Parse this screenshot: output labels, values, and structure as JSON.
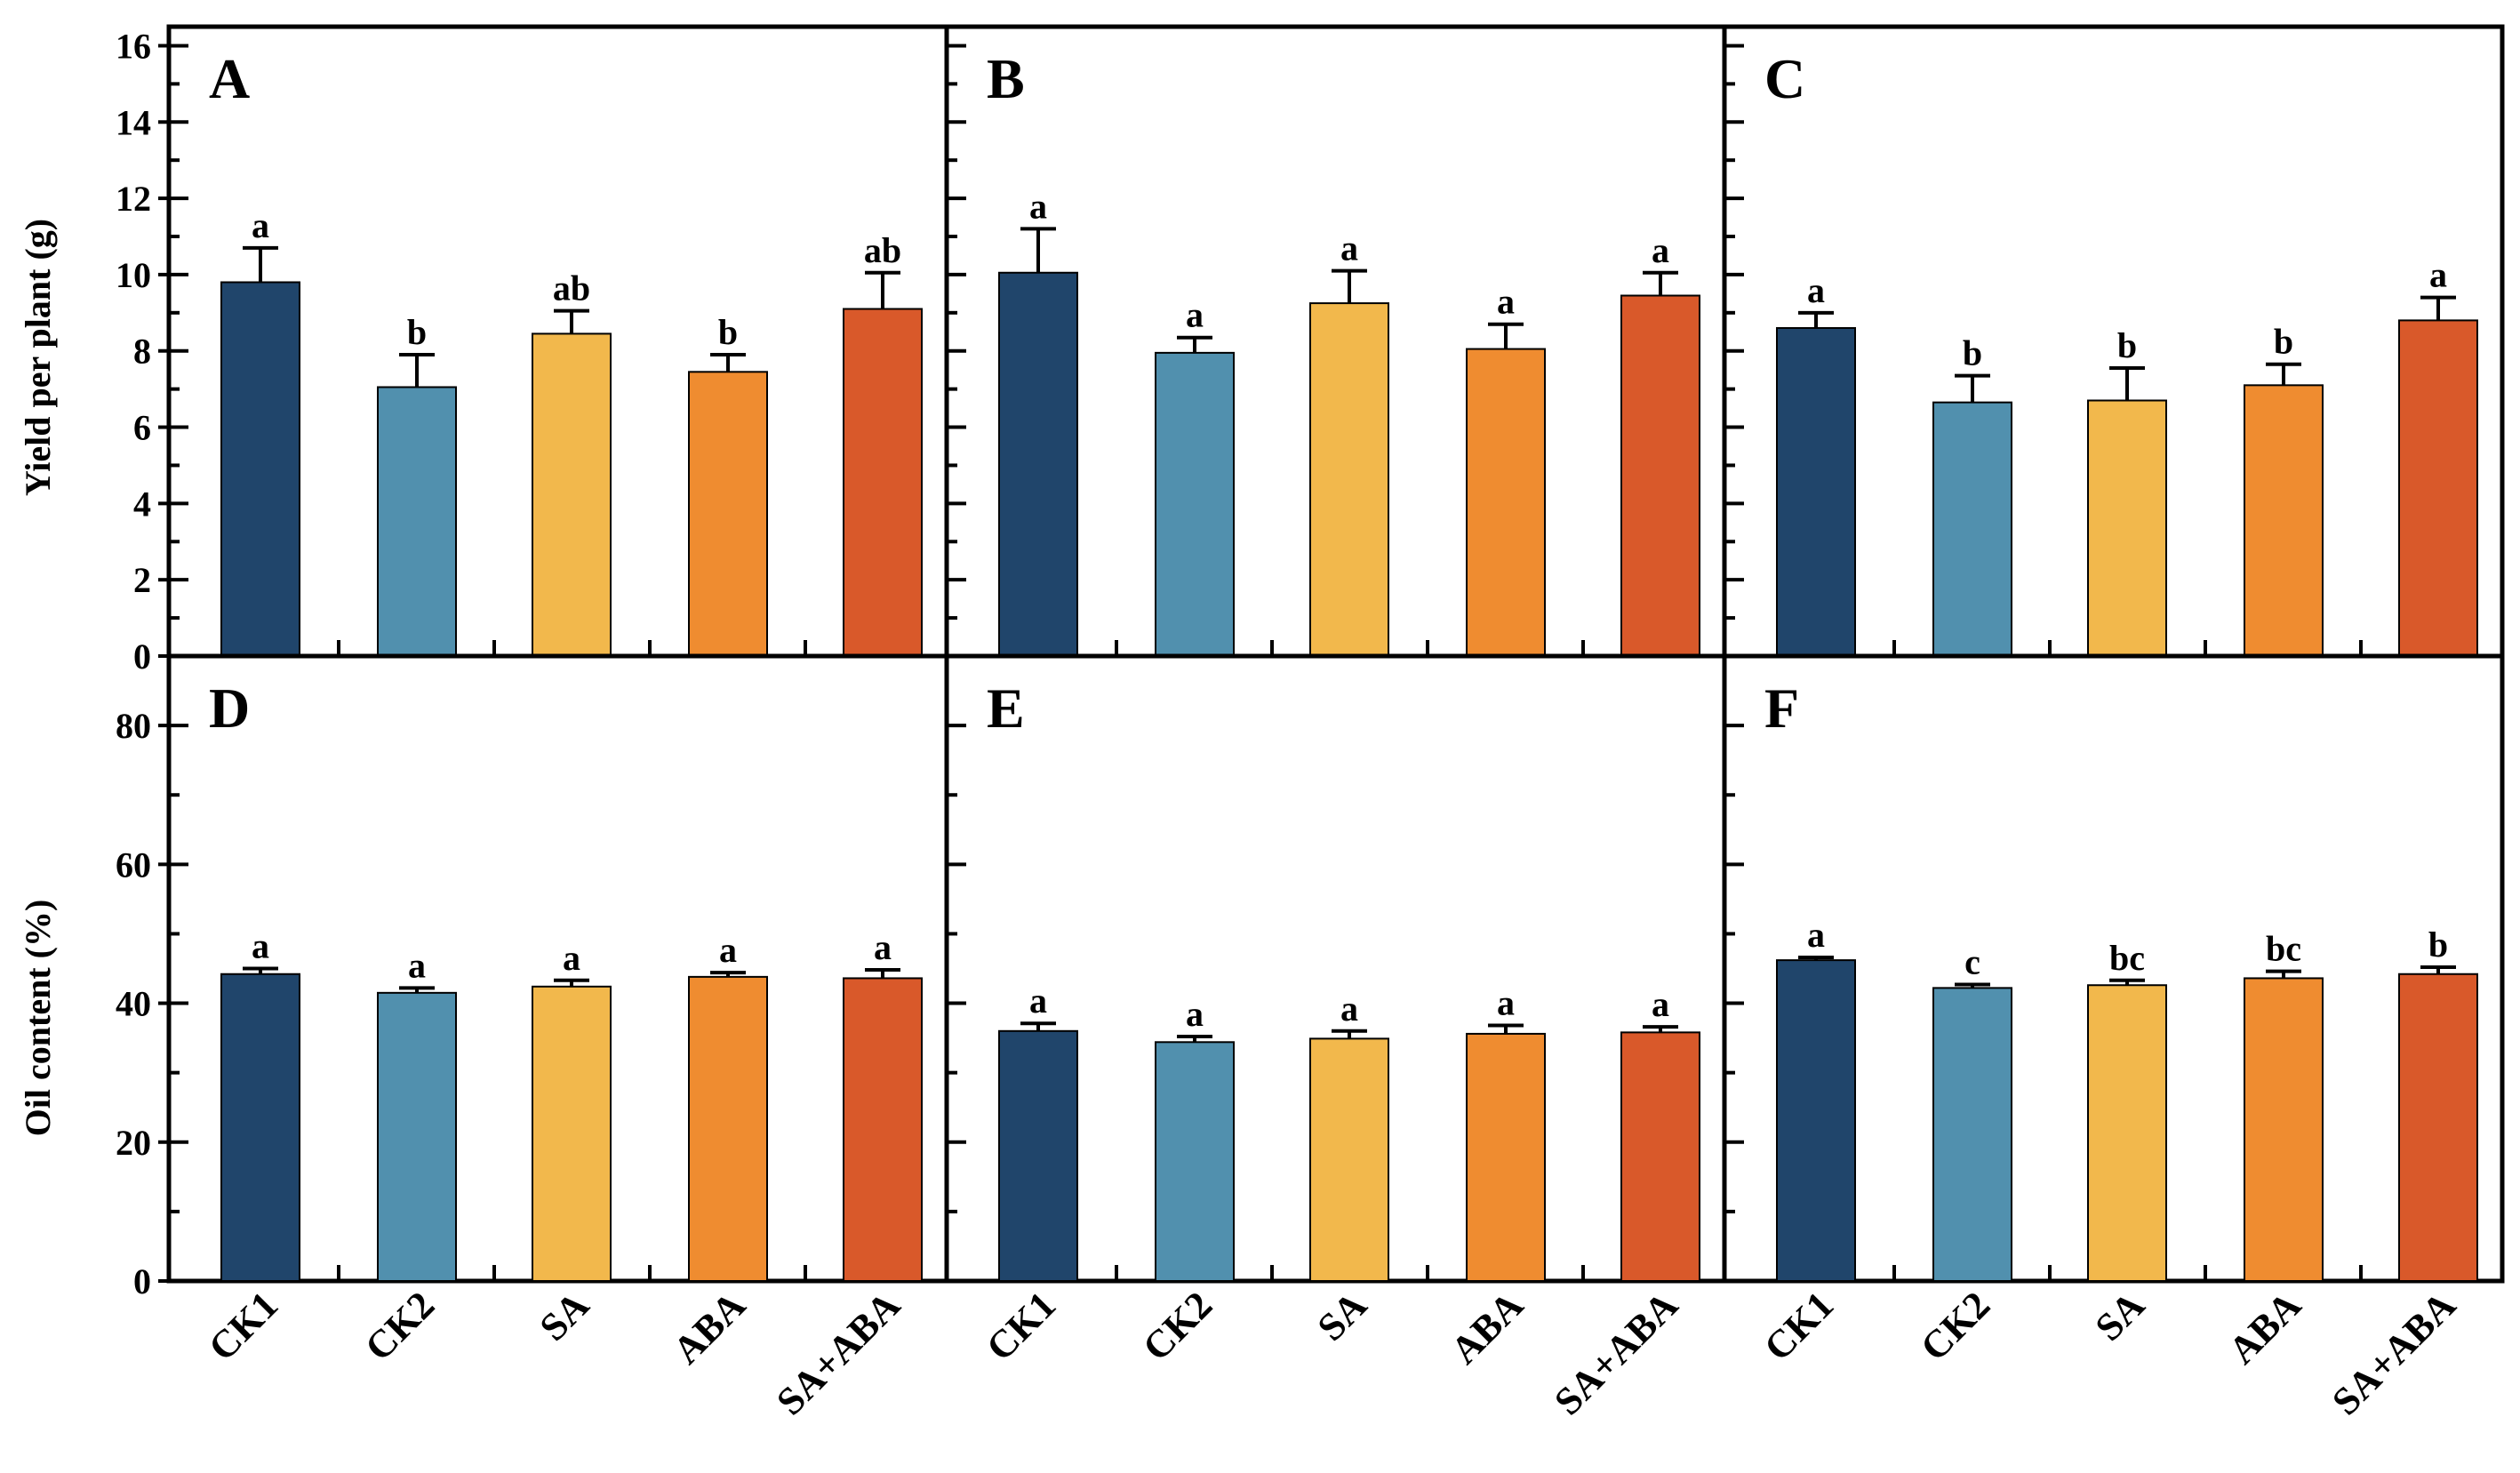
{
  "figure": {
    "categories": [
      "CK1",
      "CK2",
      "SA",
      "ABA",
      "SA+ABA"
    ],
    "colors": [
      "#20456B",
      "#5190AE",
      "#F2B84C",
      "#EF8C30",
      "#D9592A"
    ]
  },
  "chart_data": [
    {
      "type": "bar",
      "panel": "A",
      "ylabel": "Yield per plant (g)",
      "ylim": [
        0,
        16.5
      ],
      "yticks": [
        0,
        2,
        4,
        6,
        8,
        10,
        12,
        14,
        16
      ],
      "categories": [
        "CK1",
        "CK2",
        "SA",
        "ABA",
        "SA+ABA"
      ],
      "values": [
        9.8,
        7.05,
        8.45,
        7.45,
        9.1
      ],
      "errors": [
        0.9,
        0.85,
        0.6,
        0.45,
        0.95
      ],
      "letters": [
        "a",
        "b",
        "ab",
        "b",
        "ab"
      ]
    },
    {
      "type": "bar",
      "panel": "B",
      "ylabel": "Yield per plant (g)",
      "ylim": [
        0,
        16.5
      ],
      "yticks": [
        0,
        2,
        4,
        6,
        8,
        10,
        12,
        14,
        16
      ],
      "categories": [
        "CK1",
        "CK2",
        "SA",
        "ABA",
        "SA+ABA"
      ],
      "values": [
        10.05,
        7.95,
        9.25,
        8.05,
        9.45
      ],
      "errors": [
        1.15,
        0.4,
        0.85,
        0.65,
        0.6
      ],
      "letters": [
        "a",
        "a",
        "a",
        "a",
        "a"
      ]
    },
    {
      "type": "bar",
      "panel": "C",
      "ylabel": "Yield per plant (g)",
      "ylim": [
        0,
        16.5
      ],
      "yticks": [
        0,
        2,
        4,
        6,
        8,
        10,
        12,
        14,
        16
      ],
      "categories": [
        "CK1",
        "CK2",
        "SA",
        "ABA",
        "SA+ABA"
      ],
      "values": [
        8.6,
        6.65,
        6.7,
        7.1,
        8.8
      ],
      "errors": [
        0.4,
        0.7,
        0.85,
        0.55,
        0.6
      ],
      "letters": [
        "a",
        "b",
        "b",
        "b",
        "a"
      ]
    },
    {
      "type": "bar",
      "panel": "D",
      "ylabel": "Oil content (%)",
      "ylim": [
        0,
        90
      ],
      "yticks": [
        0,
        20,
        40,
        60,
        80
      ],
      "categories": [
        "CK1",
        "CK2",
        "SA",
        "ABA",
        "SA+ABA"
      ],
      "values": [
        44.2,
        41.5,
        42.4,
        43.8,
        43.6
      ],
      "errors": [
        0.8,
        0.7,
        0.9,
        0.6,
        1.2
      ],
      "letters": [
        "a",
        "a",
        "a",
        "a",
        "a"
      ]
    },
    {
      "type": "bar",
      "panel": "E",
      "ylabel": "Oil content (%)",
      "ylim": [
        0,
        90
      ],
      "yticks": [
        0,
        20,
        40,
        60,
        80
      ],
      "categories": [
        "CK1",
        "CK2",
        "SA",
        "ABA",
        "SA+ABA"
      ],
      "values": [
        36.0,
        34.4,
        34.9,
        35.6,
        35.8
      ],
      "errors": [
        1.1,
        0.8,
        1.1,
        1.2,
        0.8
      ],
      "letters": [
        "a",
        "a",
        "a",
        "a",
        "a"
      ]
    },
    {
      "type": "bar",
      "panel": "F",
      "ylabel": "Oil content (%)",
      "ylim": [
        0,
        90
      ],
      "yticks": [
        0,
        20,
        40,
        60,
        80
      ],
      "categories": [
        "CK1",
        "CK2",
        "SA",
        "ABA",
        "SA+ABA"
      ],
      "values": [
        46.2,
        42.2,
        42.6,
        43.6,
        44.2
      ],
      "errors": [
        0.4,
        0.5,
        0.7,
        1.0,
        1.0
      ],
      "letters": [
        "a",
        "c",
        "bc",
        "bc",
        "b"
      ]
    }
  ]
}
